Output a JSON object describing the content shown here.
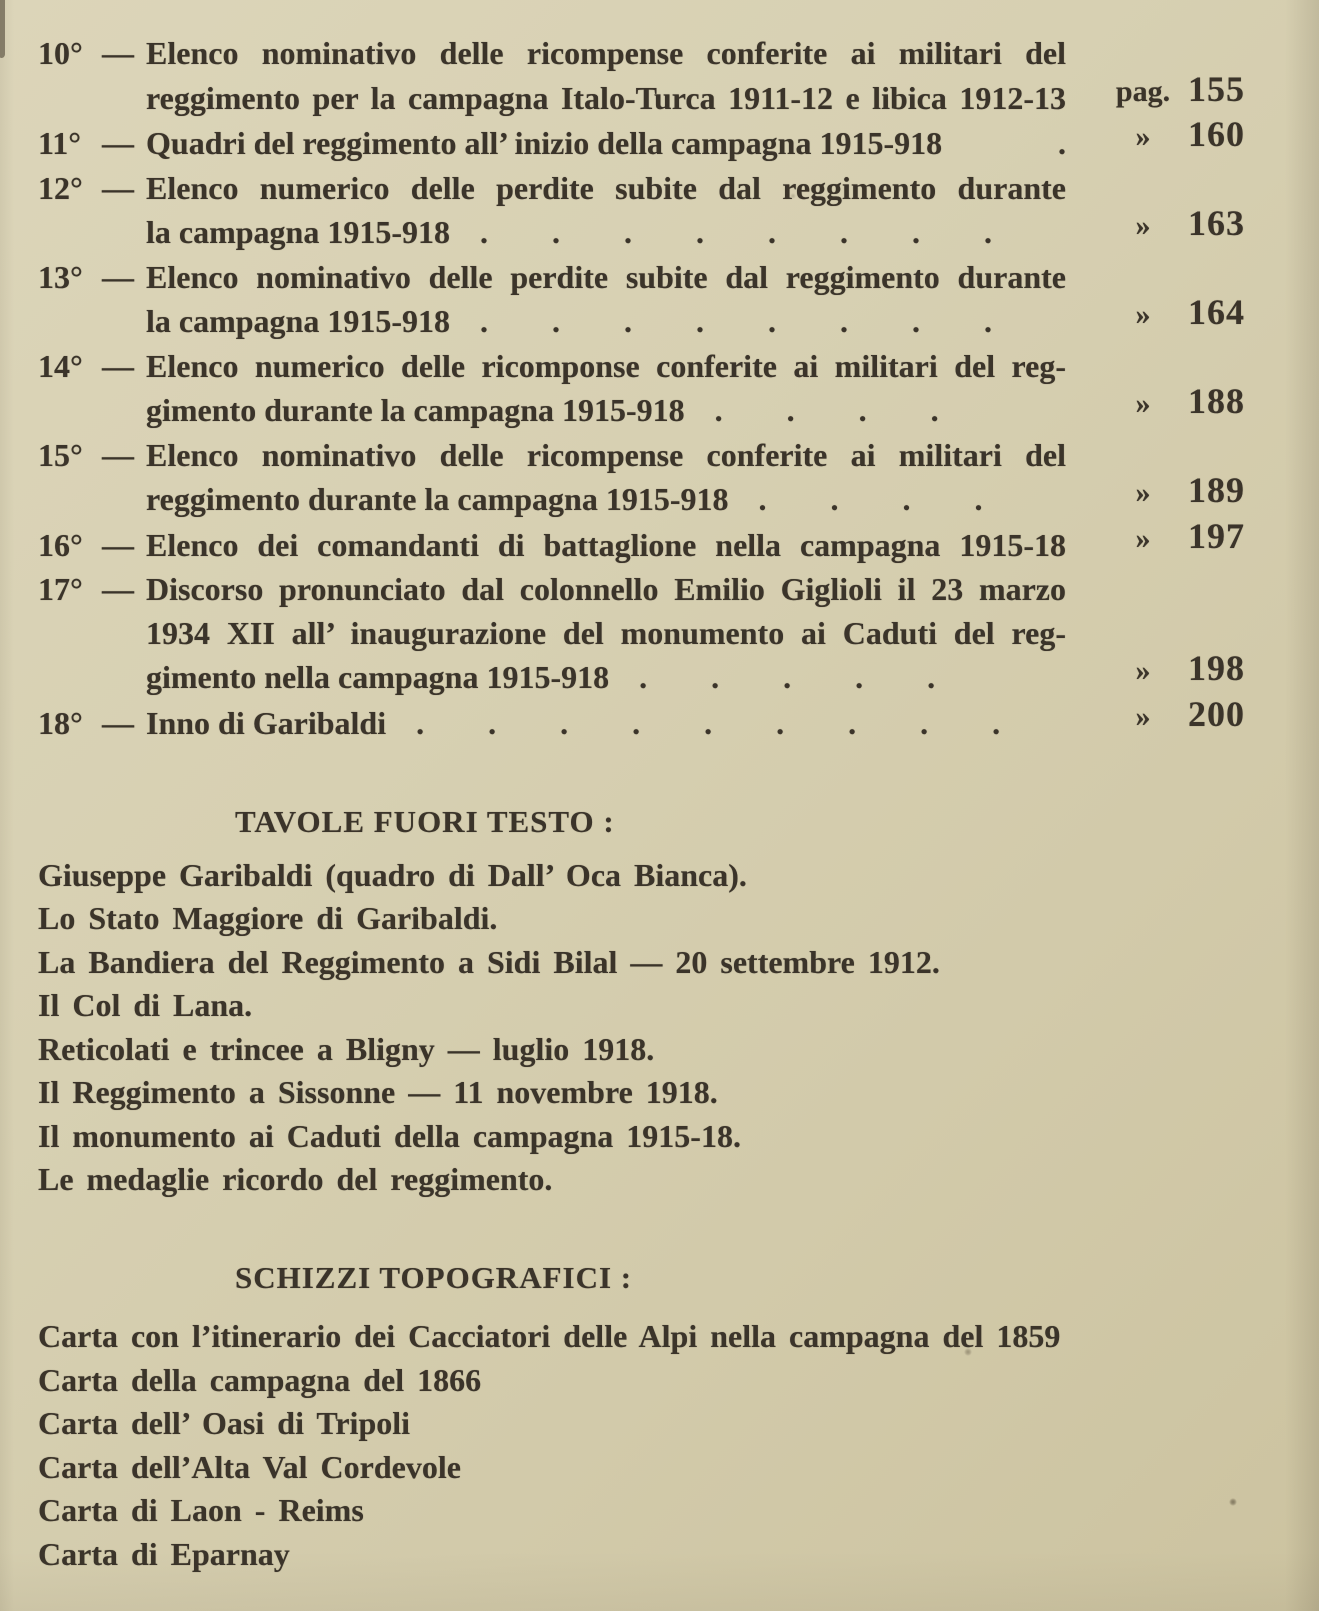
{
  "paper": {
    "background": "#d7d0b2",
    "background_dark": "#ccc3a0",
    "ink": "#3b342a"
  },
  "toc": {
    "lines": [
      {
        "num": "10°",
        "dash": "—",
        "text": "Elenco nominativo delle ricompense conferite ai militari del"
      },
      {
        "text": "reggimento per la campagna Italo-Turca 1911-12 e libica 1912-13",
        "label": "pag.",
        "page": "155"
      },
      {
        "num": "11°",
        "dash": "—",
        "text": "Quadri del reggimento all’ inizio della campagna 1915-918",
        "dots": ".",
        "label": "»",
        "page": "160"
      },
      {
        "num": "12°",
        "dash": "—",
        "text": "Elenco numerico delle perdite subite dal reggimento durante"
      },
      {
        "text": "la campagna 1915-918",
        "dots": ". . . . . . . .",
        "label": "»",
        "page": "163"
      },
      {
        "num": "13°",
        "dash": "—",
        "text": "Elenco nominativo delle perdite subite dal reggimento durante"
      },
      {
        "text": "la campagna 1915-918",
        "dots": ". . . . . . . .",
        "label": "»",
        "page": "164"
      },
      {
        "num": "14°",
        "dash": "—",
        "text": "Elenco numerico delle ricomponse conferite ai militari del reg-"
      },
      {
        "text": "gimento durante la campagna 1915-918",
        "dots": ". . . .",
        "label": "»",
        "page": "188"
      },
      {
        "num": "15°",
        "dash": "—",
        "text": "Elenco nominativo delle ricompense conferite ai militari del"
      },
      {
        "text": "reggimento durante la campagna 1915-918",
        "dots": ". . . .",
        "label": "»",
        "page": "189"
      },
      {
        "num": "16°",
        "dash": "—",
        "text": "Elenco dei comandanti di battaglione nella campagna 1915-18",
        "label": "»",
        "page": "197"
      },
      {
        "num": "17°",
        "dash": "—",
        "text": "Discorso pronunciato dal colonnello Emilio Giglioli il 23 marzo"
      },
      {
        "text": "1934 XII all’ inaugurazione del monumento ai Caduti del reg-"
      },
      {
        "text": "gimento nella campagna 1915-918",
        "dots": ". . . . .",
        "label": "»",
        "page": "198"
      },
      {
        "num": "18°",
        "dash": "—",
        "text": "Inno di Garibaldi",
        "dots": ". . . . . . . . .",
        "label": "»",
        "page": "200"
      }
    ]
  },
  "plates": {
    "heading": "TAVOLE FUORI TESTO :",
    "items": [
      "Giuseppe Garibaldi (quadro di Dall’ Oca Bianca).",
      "Lo Stato Maggiore di Garibaldi.",
      "La Bandiera del Reggimento a Sidi Bilal — 20 settembre 1912.",
      "Il Col di Lana.",
      "Reticolati e trincee a Bligny — luglio 1918.",
      "Il Reggimento a Sissonne — 11 novembre 1918.",
      "Il monumento ai Caduti della campagna 1915-18.",
      "Le medaglie ricordo del reggimento."
    ]
  },
  "sketches": {
    "heading": "SCHIZZI TOPOGRAFICI :",
    "items": [
      "Carta con l’itinerario dei Cacciatori delle Alpi nella campagna del 1859",
      "Carta della campagna del 1866",
      "Carta dell’ Oasi di Tripoli",
      "Carta dell’Alta Val Cordevole",
      "Carta di Laon - Reims",
      "Carta di Eparnay"
    ]
  }
}
